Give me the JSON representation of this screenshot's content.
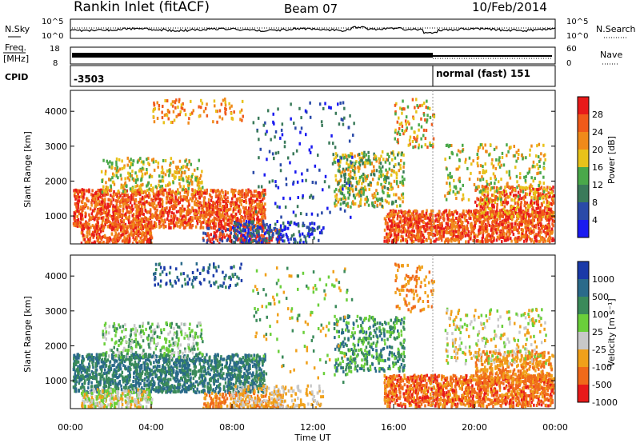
{
  "header": {
    "station": "Rankin Inlet (fitACF)",
    "beam": "Beam 07",
    "date": "10/Feb/2014"
  },
  "side_labels": {
    "nsky": "N.Sky",
    "freq_line1": "Freq.",
    "freq_line2": "[MHz]",
    "cpid": "CPID",
    "nsearch": "N.Search",
    "nave": "Nave",
    "noise_top": "10^5",
    "noise_bottom": "10^0",
    "freq_top": "18",
    "freq_bottom": "8",
    "nave_top": "60",
    "nave_bottom": "0"
  },
  "cpid": {
    "left_label": "-3503",
    "right_label": "normal (fast) 151"
  },
  "chart_data": [
    {
      "type": "heatmap",
      "name": "power",
      "ylabel": "Slant Range [km]",
      "xlabel": "",
      "y_ticks": [
        "1000",
        "2000",
        "3000",
        "4000"
      ],
      "y_range_km": [
        200,
        4600
      ],
      "colorbar_label": "Power [dB]",
      "colorbar_ticks": [
        "4",
        "8",
        "12",
        "16",
        "20",
        "24",
        "28"
      ],
      "colors": [
        "#1a1af0",
        "#2a4aa8",
        "#3a7a5a",
        "#4aa84a",
        "#e8c21a",
        "#f08a1a",
        "#f05a1a",
        "#e81a1a"
      ]
    },
    {
      "type": "heatmap",
      "name": "velocity",
      "ylabel": "Slant Range [km]",
      "xlabel": "Time UT",
      "x_ticks": [
        "00:00",
        "04:00",
        "08:00",
        "12:00",
        "16:00",
        "20:00",
        "00:00"
      ],
      "y_ticks": [
        "1000",
        "2000",
        "3000",
        "4000"
      ],
      "y_range_km": [
        200,
        4600
      ],
      "colorbar_label": "Velocity [m s⁻¹]",
      "colorbar_ticks": [
        "1000",
        "500",
        "100",
        "25",
        "-25",
        "-100",
        "-500",
        "-1000"
      ],
      "colors": [
        "#1a3aa8",
        "#2a6a8a",
        "#3a8a5a",
        "#6acf3a",
        "#c8c8c8",
        "#f0a01a",
        "#f06a1a",
        "#e81a1a"
      ]
    }
  ]
}
